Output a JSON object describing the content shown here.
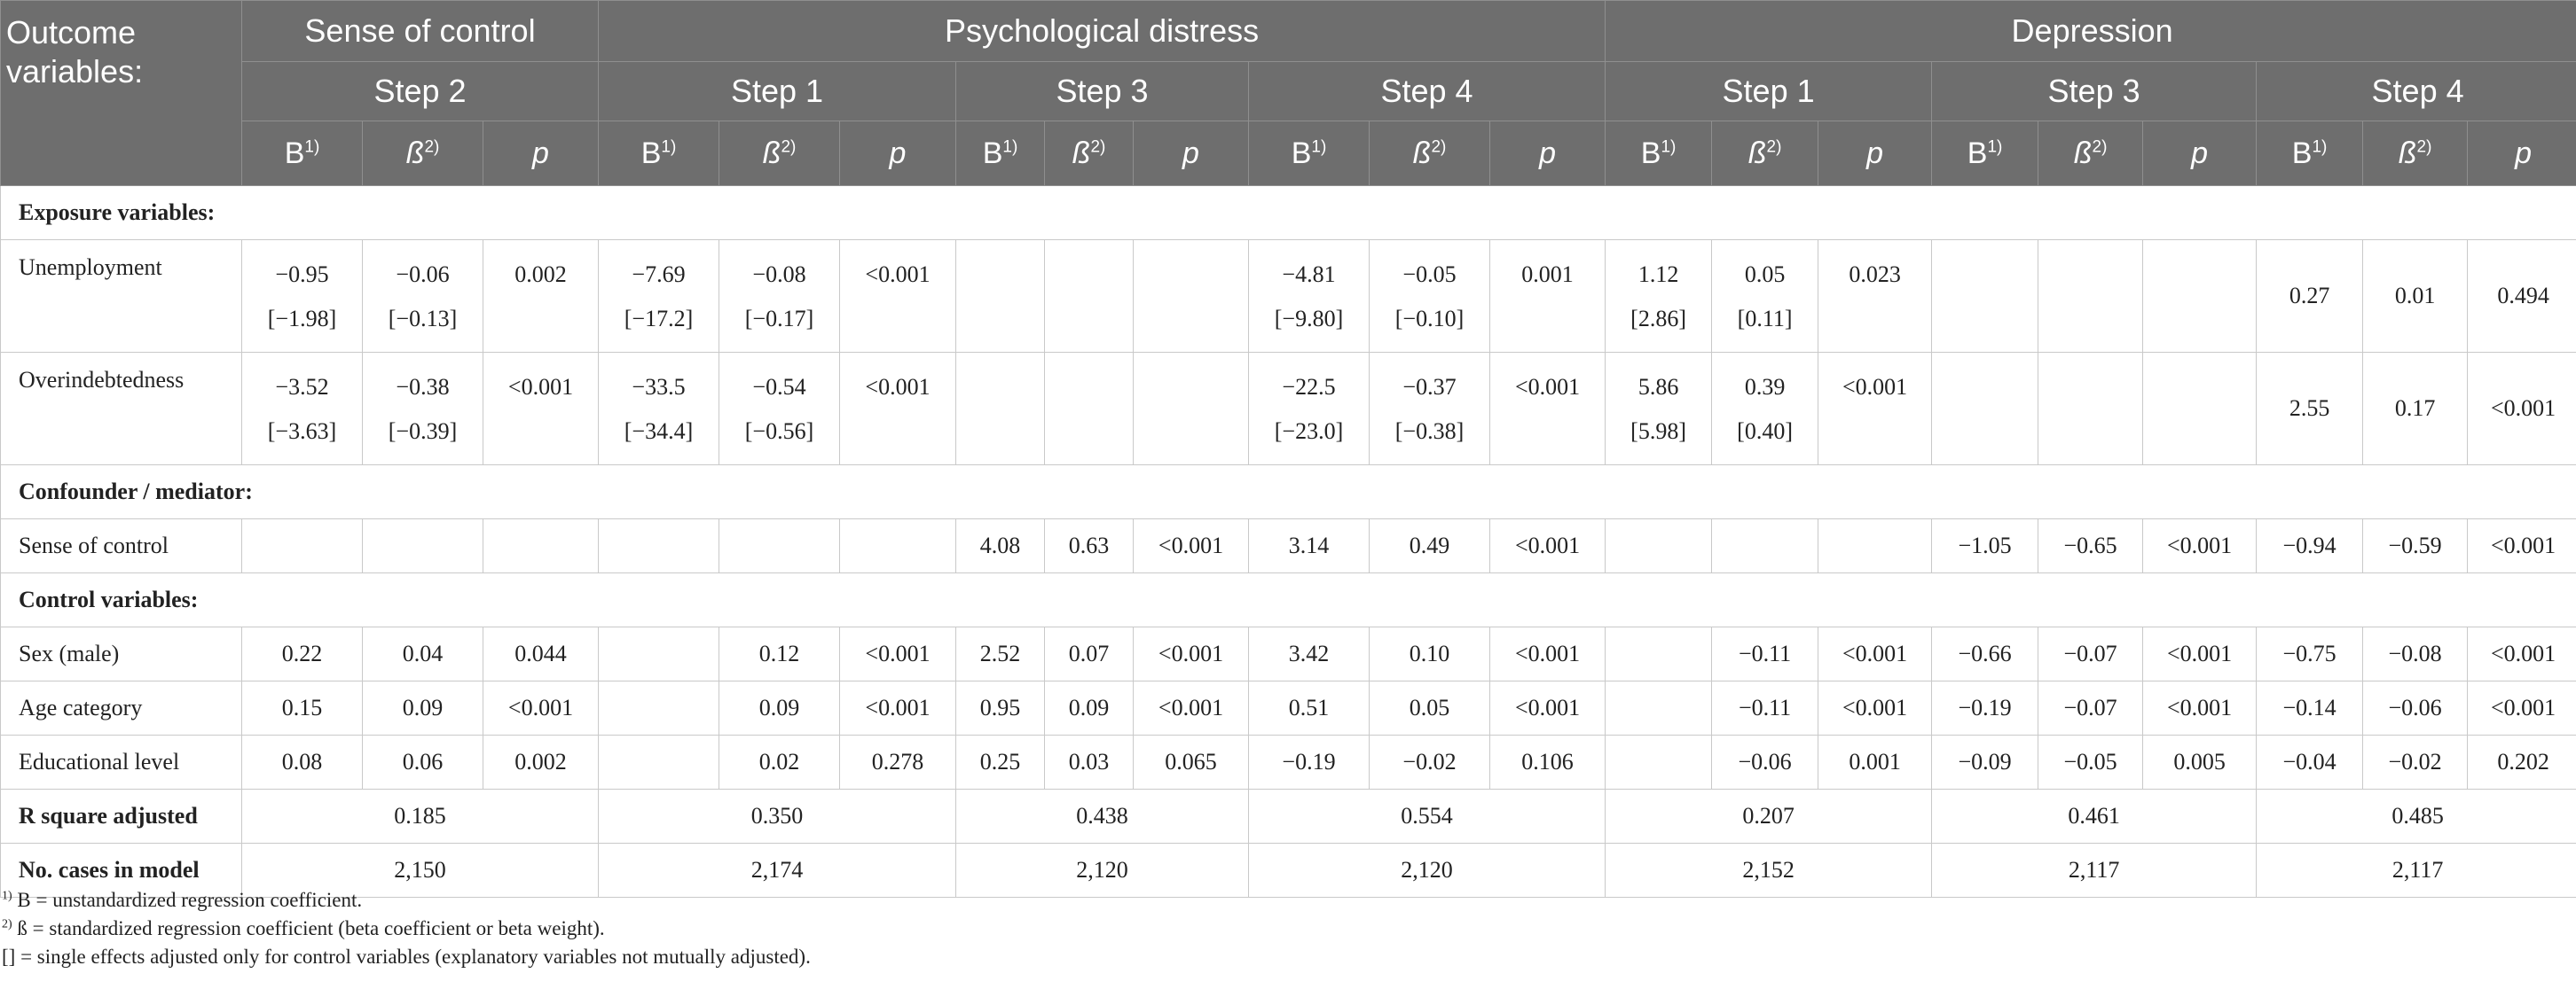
{
  "header": {
    "outcome_label": "Outcome\nvariables:",
    "groups": [
      {
        "label": "Sense of control"
      },
      {
        "label": "Psychological distress"
      },
      {
        "label": "Depression"
      }
    ],
    "steps": [
      {
        "label": "Step 2"
      },
      {
        "label": "Step 1"
      },
      {
        "label": "Step 3"
      },
      {
        "label": "Step 4"
      },
      {
        "label": "Step 1"
      },
      {
        "label": "Step 3"
      },
      {
        "label": "Step 4"
      }
    ],
    "col_b": "B",
    "col_beta": "ß",
    "col_p": "p",
    "fn1": "1)",
    "fn2": "2)"
  },
  "sections": {
    "exposure": "Exposure variables:",
    "confounder": "Confounder / mediator:",
    "control": "Control variables:"
  },
  "rows": {
    "unemployment": {
      "label": "Unemployment",
      "cells": [
        {
          "v": "−0.95",
          "ci": "[−1.98]"
        },
        {
          "v": "−0.06",
          "ci": "[−0.13]"
        },
        {
          "v": "0.002",
          "ci": ""
        },
        {
          "v": "−7.69",
          "ci": "[−17.2]"
        },
        {
          "v": "−0.08",
          "ci": "[−0.17]"
        },
        {
          "v": "<0.001",
          "ci": ""
        },
        {
          "v": "",
          "ci": ""
        },
        {
          "v": "",
          "ci": ""
        },
        {
          "v": "",
          "ci": ""
        },
        {
          "v": "−4.81",
          "ci": "[−9.80]"
        },
        {
          "v": "−0.05",
          "ci": "[−0.10]"
        },
        {
          "v": "0.001",
          "ci": ""
        },
        {
          "v": "1.12",
          "ci": "[2.86]"
        },
        {
          "v": "0.05",
          "ci": "[0.11]"
        },
        {
          "v": "0.023",
          "ci": ""
        },
        {
          "v": "",
          "ci": ""
        },
        {
          "v": "",
          "ci": ""
        },
        {
          "v": "",
          "ci": ""
        },
        {
          "v": "0.27",
          "ci": "",
          "mid": true
        },
        {
          "v": "0.01",
          "ci": "",
          "mid": true
        },
        {
          "v": "0.494",
          "ci": "",
          "mid": true
        }
      ]
    },
    "overindebtedness": {
      "label": "Overindebtedness",
      "cells": [
        {
          "v": "−3.52",
          "ci": "[−3.63]"
        },
        {
          "v": "−0.38",
          "ci": "[−0.39]"
        },
        {
          "v": "<0.001",
          "ci": ""
        },
        {
          "v": "−33.5",
          "ci": "[−34.4]"
        },
        {
          "v": "−0.54",
          "ci": "[−0.56]"
        },
        {
          "v": "<0.001",
          "ci": ""
        },
        {
          "v": "",
          "ci": ""
        },
        {
          "v": "",
          "ci": ""
        },
        {
          "v": "",
          "ci": ""
        },
        {
          "v": "−22.5",
          "ci": "[−23.0]"
        },
        {
          "v": "−0.37",
          "ci": "[−0.38]"
        },
        {
          "v": "<0.001",
          "ci": ""
        },
        {
          "v": "5.86",
          "ci": "[5.98]"
        },
        {
          "v": "0.39",
          "ci": "[0.40]"
        },
        {
          "v": "<0.001",
          "ci": ""
        },
        {
          "v": "",
          "ci": ""
        },
        {
          "v": "",
          "ci": ""
        },
        {
          "v": "",
          "ci": ""
        },
        {
          "v": "2.55",
          "ci": "",
          "mid": true
        },
        {
          "v": "0.17",
          "ci": "",
          "mid": true
        },
        {
          "v": "<0.001",
          "ci": "",
          "mid": true
        }
      ]
    },
    "sense_of_control": {
      "label": "Sense of control",
      "cells": [
        "",
        "",
        "",
        "",
        "",
        "",
        "4.08",
        "0.63",
        "<0.001",
        "3.14",
        "0.49",
        "<0.001",
        "",
        "",
        "",
        "−1.05",
        "−0.65",
        "<0.001",
        "−0.94",
        "−0.59",
        "<0.001"
      ]
    },
    "sex": {
      "label": "Sex (male)",
      "cells": [
        "0.22",
        "0.04",
        "0.044",
        "",
        "0.12",
        "<0.001",
        "2.52",
        "0.07",
        "<0.001",
        "3.42",
        "0.10",
        "<0.001",
        "",
        "−0.11",
        "<0.001",
        "−0.66",
        "−0.07",
        "<0.001",
        "−0.75",
        "−0.08",
        "<0.001"
      ]
    },
    "age": {
      "label": "Age category",
      "cells": [
        "0.15",
        "0.09",
        "<0.001",
        "",
        "0.09",
        "<0.001",
        "0.95",
        "0.09",
        "<0.001",
        "0.51",
        "0.05",
        "<0.001",
        "",
        "−0.11",
        "<0.001",
        "−0.19",
        "−0.07",
        "<0.001",
        "−0.14",
        "−0.06",
        "<0.001"
      ]
    },
    "education": {
      "label": "Educational level",
      "cells": [
        "0.08",
        "0.06",
        "0.002",
        "",
        "0.02",
        "0.278",
        "0.25",
        "0.03",
        "0.065",
        "−0.19",
        "−0.02",
        "0.106",
        "",
        "−0.06",
        "0.001",
        "−0.09",
        "−0.05",
        "0.005",
        "−0.04",
        "−0.02",
        "0.202"
      ]
    },
    "r_square": {
      "label": "R square adjusted",
      "values": [
        "0.185",
        "0.350",
        "0.438",
        "0.554",
        "0.207",
        "0.461",
        "0.485"
      ]
    },
    "n_cases": {
      "label": "No. cases in model",
      "values": [
        "2,150",
        "2,174",
        "2,120",
        "2,120",
        "2,152",
        "2,117",
        "2,117"
      ]
    }
  },
  "notes": [
    {
      "sup": "1)",
      "text": " B = unstandardized regression coefficient."
    },
    {
      "sup": "2)",
      "text": " ß = standardized regression coefficient (beta coefficient or beta weight)."
    },
    {
      "sup": "",
      "text": "[] = single effects adjusted only for control variables (explanatory variables not mutually adjusted)."
    }
  ]
}
